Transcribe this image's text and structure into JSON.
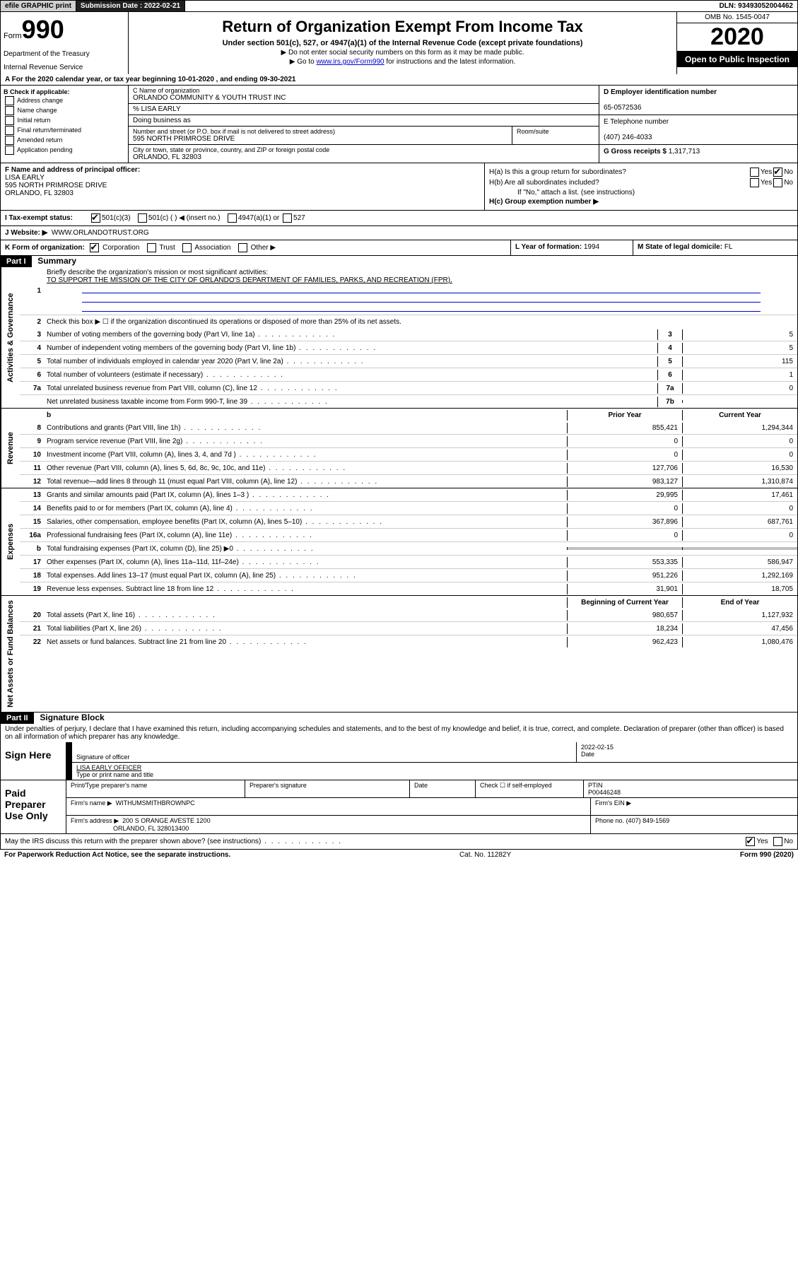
{
  "topbar": {
    "efile": "efile GRAPHIC print",
    "submission_label": "Submission Date : 2022-02-21",
    "dln": "DLN: 93493052004462"
  },
  "header": {
    "form_prefix": "Form",
    "form_num": "990",
    "dept": "Department of the Treasury",
    "irs": "Internal Revenue Service",
    "title": "Return of Organization Exempt From Income Tax",
    "subtitle": "Under section 501(c), 527, or 4947(a)(1) of the Internal Revenue Code (except private foundations)",
    "note1": "▶ Do not enter social security numbers on this form as it may be made public.",
    "note2_pre": "▶ Go to ",
    "note2_link": "www.irs.gov/Form990",
    "note2_post": " for instructions and the latest information.",
    "omb": "OMB No. 1545-0047",
    "year": "2020",
    "inspection": "Open to Public Inspection"
  },
  "row_a": "A For the 2020 calendar year, or tax year beginning 10-01-2020     , and ending 09-30-2021",
  "col_b": {
    "header": "B Check if applicable:",
    "items": [
      "Address change",
      "Name change",
      "Initial return",
      "Final return/terminated",
      "Amended return",
      "Application pending"
    ]
  },
  "col_c": {
    "name_label": "C Name of organization",
    "name": "ORLANDO COMMUNITY & YOUTH TRUST INC",
    "care_of": "% LISA EARLY",
    "dba_label": "Doing business as",
    "street_label": "Number and street (or P.O. box if mail is not delivered to street address)",
    "street": "595 NORTH PRIMROSE DRIVE",
    "suite_label": "Room/suite",
    "city_label": "City or town, state or province, country, and ZIP or foreign postal code",
    "city": "ORLANDO, FL  32803"
  },
  "col_d": {
    "ein_label": "D Employer identification number",
    "ein": "65-0572536",
    "phone_label": "E Telephone number",
    "phone": "(407) 246-4033",
    "gross_label": "G Gross receipts $",
    "gross": "1,317,713"
  },
  "col_f": {
    "label": "F Name and address of principal officer:",
    "name": "LISA EARLY",
    "addr1": "595 NORTH PRIMROSE DRIVE",
    "addr2": "ORLANDO, FL  32803"
  },
  "col_h": {
    "ha_label": "H(a)  Is this a group return for subordinates?",
    "hb_label": "H(b)  Are all subordinates included?",
    "hb_note": "If \"No,\" attach a list. (see instructions)",
    "hc_label": "H(c)  Group exemption number ▶",
    "yes": "Yes",
    "no": "No"
  },
  "row_i": {
    "label": "I  Tax-exempt status:",
    "opt1": "501(c)(3)",
    "opt2": "501(c) (   ) ◀ (insert no.)",
    "opt3": "4947(a)(1) or",
    "opt4": "527"
  },
  "row_j": {
    "label": "J  Website: ▶",
    "value": "WWW.ORLANDOTRUST.ORG"
  },
  "row_k": {
    "label": "K Form of organization:",
    "opt1": "Corporation",
    "opt2": "Trust",
    "opt3": "Association",
    "opt4": "Other ▶",
    "l_label": "L Year of formation:",
    "l_val": "1994",
    "m_label": "M State of legal domicile:",
    "m_val": "FL"
  },
  "part1": {
    "header": "Part I",
    "title": "Summary",
    "governance_label": "Activities & Governance",
    "revenue_label": "Revenue",
    "expenses_label": "Expenses",
    "net_label": "Net Assets or Fund Balances",
    "q1_label": "Briefly describe the organization's mission or most significant activities:",
    "q1_val": "TO SUPPORT THE MISSION OF THE CITY OF ORLANDO'S DEPARTMENT OF FAMILIES, PARKS, AND RECREATION (FPR).",
    "q2": "Check this box ▶ ☐  if the organization discontinued its operations or disposed of more than 25% of its net assets.",
    "lines_gov": [
      {
        "n": "3",
        "t": "Number of voting members of the governing body (Part VI, line 1a)",
        "b": "3",
        "v": "5"
      },
      {
        "n": "4",
        "t": "Number of independent voting members of the governing body (Part VI, line 1b)",
        "b": "4",
        "v": "5"
      },
      {
        "n": "5",
        "t": "Total number of individuals employed in calendar year 2020 (Part V, line 2a)",
        "b": "5",
        "v": "115"
      },
      {
        "n": "6",
        "t": "Total number of volunteers (estimate if necessary)",
        "b": "6",
        "v": "1"
      },
      {
        "n": "7a",
        "t": "Total unrelated business revenue from Part VIII, column (C), line 12",
        "b": "7a",
        "v": "0"
      },
      {
        "n": "",
        "t": "Net unrelated business taxable income from Form 990-T, line 39",
        "b": "7b",
        "v": ""
      }
    ],
    "col_prior": "Prior Year",
    "col_current": "Current Year",
    "lines_rev": [
      {
        "n": "8",
        "t": "Contributions and grants (Part VIII, line 1h)",
        "p": "855,421",
        "c": "1,294,344"
      },
      {
        "n": "9",
        "t": "Program service revenue (Part VIII, line 2g)",
        "p": "0",
        "c": "0"
      },
      {
        "n": "10",
        "t": "Investment income (Part VIII, column (A), lines 3, 4, and 7d )",
        "p": "0",
        "c": "0"
      },
      {
        "n": "11",
        "t": "Other revenue (Part VIII, column (A), lines 5, 6d, 8c, 9c, 10c, and 11e)",
        "p": "127,706",
        "c": "16,530"
      },
      {
        "n": "12",
        "t": "Total revenue—add lines 8 through 11 (must equal Part VIII, column (A), line 12)",
        "p": "983,127",
        "c": "1,310,874"
      }
    ],
    "lines_exp": [
      {
        "n": "13",
        "t": "Grants and similar amounts paid (Part IX, column (A), lines 1–3 )",
        "p": "29,995",
        "c": "17,461"
      },
      {
        "n": "14",
        "t": "Benefits paid to or for members (Part IX, column (A), line 4)",
        "p": "0",
        "c": "0"
      },
      {
        "n": "15",
        "t": "Salaries, other compensation, employee benefits (Part IX, column (A), lines 5–10)",
        "p": "367,896",
        "c": "687,761"
      },
      {
        "n": "16a",
        "t": "Professional fundraising fees (Part IX, column (A), line 11e)",
        "p": "0",
        "c": "0"
      },
      {
        "n": "b",
        "t": "Total fundraising expenses (Part IX, column (D), line 25) ▶0",
        "p": "__shade__",
        "c": "__shade__"
      },
      {
        "n": "17",
        "t": "Other expenses (Part IX, column (A), lines 11a–11d, 11f–24e)",
        "p": "553,335",
        "c": "586,947"
      },
      {
        "n": "18",
        "t": "Total expenses. Add lines 13–17 (must equal Part IX, column (A), line 25)",
        "p": "951,226",
        "c": "1,292,169"
      },
      {
        "n": "19",
        "t": "Revenue less expenses. Subtract line 18 from line 12",
        "p": "31,901",
        "c": "18,705"
      }
    ],
    "col_begin": "Beginning of Current Year",
    "col_end": "End of Year",
    "lines_net": [
      {
        "n": "20",
        "t": "Total assets (Part X, line 16)",
        "p": "980,657",
        "c": "1,127,932"
      },
      {
        "n": "21",
        "t": "Total liabilities (Part X, line 26)",
        "p": "18,234",
        "c": "47,456"
      },
      {
        "n": "22",
        "t": "Net assets or fund balances. Subtract line 21 from line 20",
        "p": "962,423",
        "c": "1,080,476"
      }
    ]
  },
  "part2": {
    "header": "Part II",
    "title": "Signature Block",
    "perjury": "Under penalties of perjury, I declare that I have examined this return, including accompanying schedules and statements, and to the best of my knowledge and belief, it is true, correct, and complete. Declaration of preparer (other than officer) is based on all information of which preparer has any knowledge.",
    "sign_here": "Sign Here",
    "sig_officer": "Signature of officer",
    "sig_date": "2022-02-15",
    "date_label": "Date",
    "sig_name": "LISA EARLY OFFICER",
    "sig_name_label": "Type or print name and title",
    "paid_prep": "Paid Preparer Use Only",
    "prep_name_label": "Print/Type preparer's name",
    "prep_sig_label": "Preparer's signature",
    "prep_date_label": "Date",
    "prep_check": "Check ☐ if self-employed",
    "ptin_label": "PTIN",
    "ptin": "P00446248",
    "firm_name_label": "Firm's name    ▶",
    "firm_name": "WITHUMSMITHBROWNPC",
    "firm_ein_label": "Firm's EIN ▶",
    "firm_addr_label": "Firm's address ▶",
    "firm_addr1": "200 S ORANGE AVESTE 1200",
    "firm_addr2": "ORLANDO, FL  328013400",
    "firm_phone_label": "Phone no.",
    "firm_phone": "(407) 849-1569",
    "discuss": "May the IRS discuss this return with the preparer shown above? (see instructions)",
    "yes": "Yes",
    "no": "No"
  },
  "footer": {
    "left": "For Paperwork Reduction Act Notice, see the separate instructions.",
    "mid": "Cat. No. 11282Y",
    "right": "Form 990 (2020)"
  }
}
